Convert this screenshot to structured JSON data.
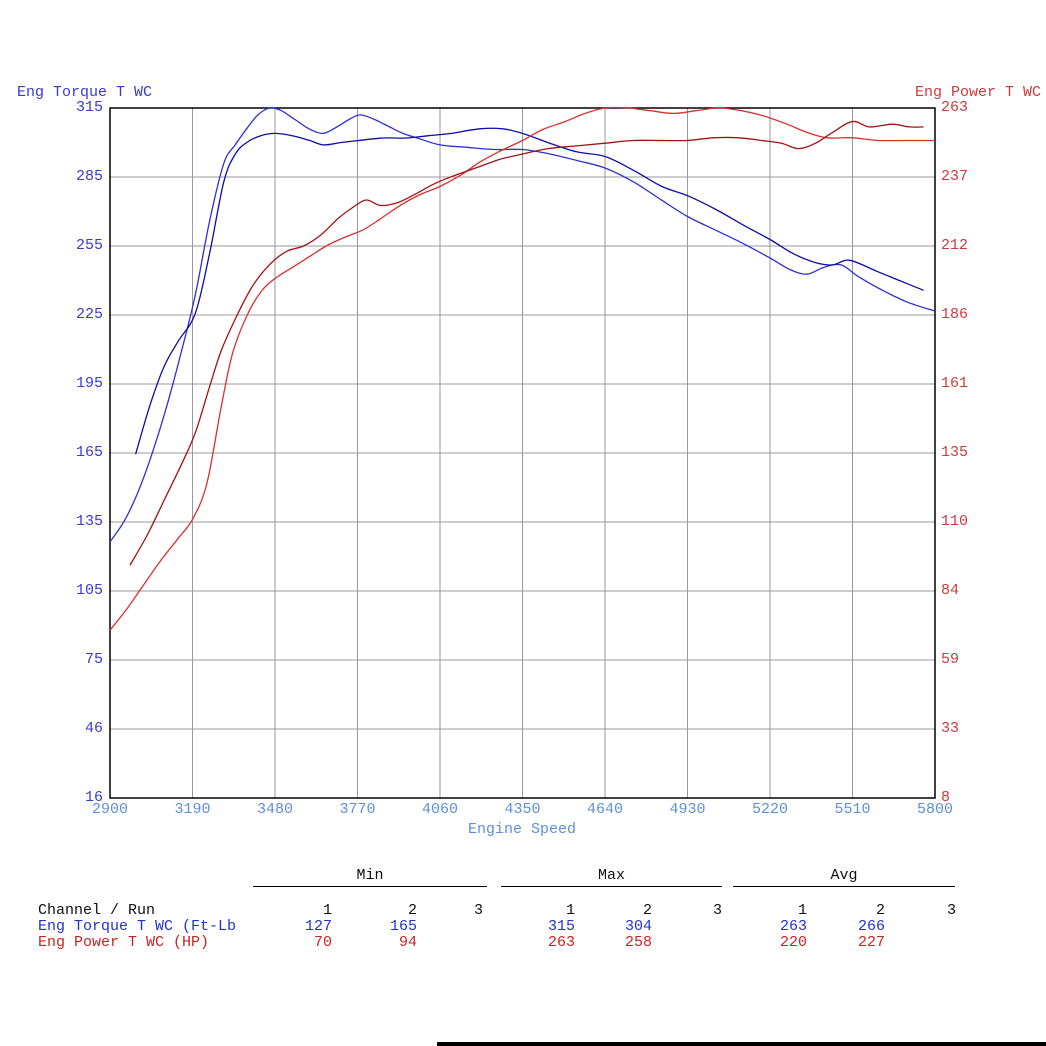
{
  "chart": {
    "left_title": "Eng Torque T WC",
    "right_title": "Eng Power T WC",
    "x_label": "Engine Speed",
    "left_ticks": [
      "315",
      "285",
      "255",
      "225",
      "195",
      "165",
      "135",
      "105",
      "75",
      "46",
      "16"
    ],
    "right_ticks": [
      "263",
      "237",
      "212",
      "186",
      "161",
      "135",
      "110",
      "84",
      "59",
      "33",
      "8"
    ],
    "x_ticks": [
      "2900",
      "3190",
      "3480",
      "3770",
      "4060",
      "4350",
      "4640",
      "4930",
      "5220",
      "5510",
      "5800"
    ],
    "colors": {
      "left_axis_text": "#3a3ace",
      "right_axis_text": "#cc3b3b",
      "x_axis_text": "#5d8fdc",
      "grid": "#999999",
      "border": "#000000"
    }
  },
  "chart_data": {
    "type": "line",
    "title": "",
    "xlabel": "Engine Speed",
    "x_range": [
      2900,
      5800
    ],
    "y_left": {
      "label": "Eng Torque T WC",
      "units": "Ft-Lb",
      "range": [
        16,
        315
      ]
    },
    "y_right": {
      "label": "Eng Power T WC",
      "units": "HP",
      "range": [
        8,
        263
      ]
    },
    "grid": true,
    "legend_position": "none",
    "series": [
      {
        "name": "Eng Torque T WC run 1",
        "axis": "left",
        "color": "#2f2fd4",
        "points": [
          [
            2900,
            127
          ],
          [
            2950,
            136
          ],
          [
            3000,
            149
          ],
          [
            3050,
            166
          ],
          [
            3100,
            186
          ],
          [
            3150,
            209
          ],
          [
            3200,
            234
          ],
          [
            3250,
            266
          ],
          [
            3300,
            291
          ],
          [
            3340,
            299
          ],
          [
            3380,
            306
          ],
          [
            3420,
            312
          ],
          [
            3460,
            315
          ],
          [
            3500,
            314
          ],
          [
            3550,
            310
          ],
          [
            3600,
            306
          ],
          [
            3650,
            304
          ],
          [
            3700,
            307
          ],
          [
            3740,
            310
          ],
          [
            3780,
            312
          ],
          [
            3830,
            310
          ],
          [
            3880,
            307
          ],
          [
            3930,
            304
          ],
          [
            3980,
            302
          ],
          [
            4060,
            299
          ],
          [
            4150,
            298
          ],
          [
            4250,
            297
          ],
          [
            4350,
            297
          ],
          [
            4450,
            295
          ],
          [
            4550,
            292
          ],
          [
            4640,
            289
          ],
          [
            4740,
            283
          ],
          [
            4840,
            275
          ],
          [
            4930,
            268
          ],
          [
            5030,
            262
          ],
          [
            5130,
            256
          ],
          [
            5220,
            250
          ],
          [
            5290,
            245
          ],
          [
            5350,
            243
          ],
          [
            5410,
            246
          ],
          [
            5470,
            247
          ],
          [
            5530,
            242
          ],
          [
            5600,
            237
          ],
          [
            5700,
            231
          ],
          [
            5800,
            227
          ]
        ]
      },
      {
        "name": "Eng Torque T WC run 2",
        "axis": "left",
        "color": "#0d0da8",
        "points": [
          [
            2990,
            165
          ],
          [
            3040,
            186
          ],
          [
            3090,
            203
          ],
          [
            3140,
            214
          ],
          [
            3200,
            226
          ],
          [
            3250,
            252
          ],
          [
            3300,
            283
          ],
          [
            3340,
            295
          ],
          [
            3380,
            300
          ],
          [
            3430,
            303
          ],
          [
            3480,
            304
          ],
          [
            3540,
            303
          ],
          [
            3600,
            301
          ],
          [
            3650,
            299
          ],
          [
            3710,
            300
          ],
          [
            3780,
            301
          ],
          [
            3860,
            302
          ],
          [
            3940,
            302
          ],
          [
            4020,
            303
          ],
          [
            4100,
            304
          ],
          [
            4200,
            306
          ],
          [
            4280,
            306
          ],
          [
            4350,
            304
          ],
          [
            4440,
            300
          ],
          [
            4540,
            296
          ],
          [
            4640,
            294
          ],
          [
            4740,
            288
          ],
          [
            4840,
            281
          ],
          [
            4930,
            277
          ],
          [
            5030,
            271
          ],
          [
            5130,
            264
          ],
          [
            5220,
            258
          ],
          [
            5300,
            252
          ],
          [
            5380,
            248
          ],
          [
            5440,
            247
          ],
          [
            5500,
            249
          ],
          [
            5600,
            244
          ],
          [
            5680,
            240
          ],
          [
            5760,
            236
          ]
        ]
      },
      {
        "name": "Eng Power T WC run 1",
        "axis": "right",
        "color": "#d93030",
        "points": [
          [
            2900,
            70
          ],
          [
            2960,
            78
          ],
          [
            3020,
            87
          ],
          [
            3080,
            96
          ],
          [
            3140,
            104
          ],
          [
            3190,
            111
          ],
          [
            3240,
            124
          ],
          [
            3290,
            152
          ],
          [
            3330,
            172
          ],
          [
            3380,
            186
          ],
          [
            3430,
            195
          ],
          [
            3480,
            200
          ],
          [
            3540,
            204
          ],
          [
            3600,
            208
          ],
          [
            3660,
            212
          ],
          [
            3720,
            215
          ],
          [
            3790,
            218
          ],
          [
            3850,
            222
          ],
          [
            3920,
            227
          ],
          [
            3990,
            231
          ],
          [
            4060,
            234
          ],
          [
            4130,
            238
          ],
          [
            4200,
            243
          ],
          [
            4270,
            247
          ],
          [
            4350,
            251
          ],
          [
            4420,
            255
          ],
          [
            4500,
            258
          ],
          [
            4570,
            261
          ],
          [
            4640,
            263
          ],
          [
            4720,
            263
          ],
          [
            4800,
            262
          ],
          [
            4880,
            261
          ],
          [
            4960,
            262
          ],
          [
            5040,
            263
          ],
          [
            5120,
            262
          ],
          [
            5200,
            260
          ],
          [
            5280,
            257
          ],
          [
            5350,
            254
          ],
          [
            5420,
            252
          ],
          [
            5510,
            252
          ],
          [
            5600,
            251
          ],
          [
            5700,
            251
          ],
          [
            5800,
            251
          ]
        ]
      },
      {
        "name": "Eng Power T WC run 2",
        "axis": "right",
        "color": "#a31212",
        "points": [
          [
            2970,
            94
          ],
          [
            3030,
            105
          ],
          [
            3090,
            118
          ],
          [
            3150,
            131
          ],
          [
            3200,
            143
          ],
          [
            3250,
            160
          ],
          [
            3290,
            173
          ],
          [
            3340,
            185
          ],
          [
            3400,
            197
          ],
          [
            3460,
            205
          ],
          [
            3520,
            210
          ],
          [
            3580,
            212
          ],
          [
            3640,
            216
          ],
          [
            3700,
            222
          ],
          [
            3750,
            226
          ],
          [
            3800,
            229
          ],
          [
            3850,
            227
          ],
          [
            3910,
            228
          ],
          [
            3970,
            231
          ],
          [
            4040,
            235
          ],
          [
            4110,
            238
          ],
          [
            4190,
            241
          ],
          [
            4270,
            244
          ],
          [
            4350,
            246
          ],
          [
            4440,
            248
          ],
          [
            4540,
            249
          ],
          [
            4640,
            250
          ],
          [
            4740,
            251
          ],
          [
            4840,
            251
          ],
          [
            4930,
            251
          ],
          [
            5020,
            252
          ],
          [
            5110,
            252
          ],
          [
            5190,
            251
          ],
          [
            5260,
            250
          ],
          [
            5320,
            248
          ],
          [
            5380,
            250
          ],
          [
            5440,
            254
          ],
          [
            5510,
            258
          ],
          [
            5570,
            256
          ],
          [
            5650,
            257
          ],
          [
            5710,
            256
          ],
          [
            5760,
            256
          ]
        ]
      }
    ]
  },
  "table": {
    "channel_header": "Channel / Run",
    "group_headers": [
      "Min",
      "Max",
      "Avg"
    ],
    "run_headers": [
      "1",
      "2",
      "3"
    ],
    "rows": [
      {
        "label": "Eng Torque T WC (Ft-Lb",
        "color": "#2233cc",
        "min": [
          "127",
          "165",
          ""
        ],
        "max": [
          "315",
          "304",
          ""
        ],
        "avg": [
          "263",
          "266",
          ""
        ]
      },
      {
        "label": "Eng Power T WC (HP)",
        "color": "#cc2222",
        "min": [
          "70",
          "94",
          ""
        ],
        "max": [
          "263",
          "258",
          ""
        ],
        "avg": [
          "220",
          "227",
          ""
        ]
      }
    ]
  }
}
